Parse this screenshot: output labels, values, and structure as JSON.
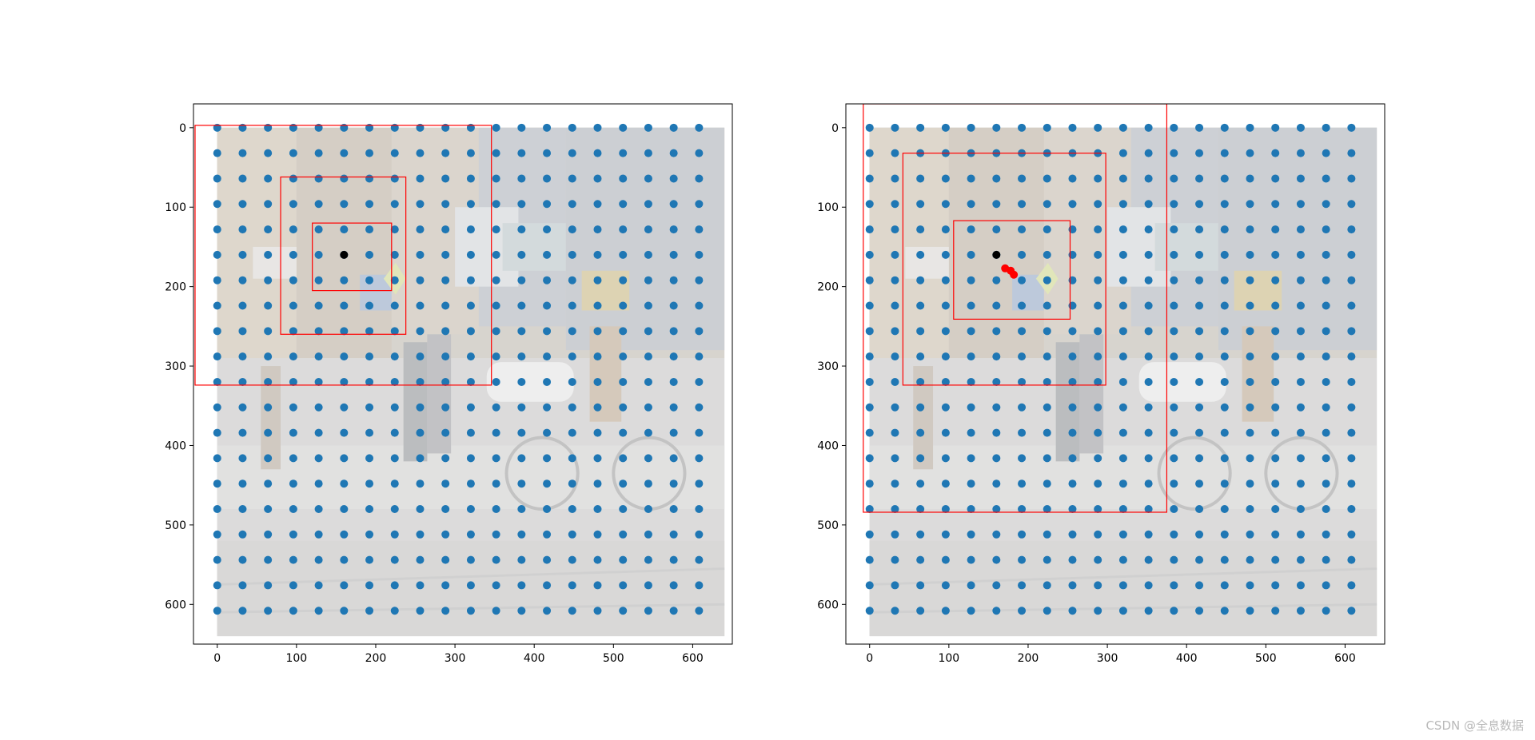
{
  "watermark": "CSDN @全息数据",
  "chart_data": [
    {
      "type": "scatter",
      "title": "",
      "xlabel": "",
      "ylabel": "",
      "xlim": [
        -30,
        650
      ],
      "ylim": [
        650,
        -30
      ],
      "y_inverted": true,
      "grid": false,
      "xticks": [
        0,
        100,
        200,
        300,
        400,
        500,
        600
      ],
      "yticks": [
        0,
        100,
        200,
        300,
        400,
        500,
        600
      ],
      "background_image": {
        "extent": [
          0,
          640,
          640,
          0
        ],
        "faded": true
      },
      "grid_points": {
        "start": 0,
        "step": 32,
        "count_x": 20,
        "count_y": 20,
        "color": "#1f77b4"
      },
      "center_point": {
        "x": 160,
        "y": 160,
        "color": "#000000"
      },
      "extra_points": [],
      "boxes": [
        {
          "x1": 120,
          "y1": 120,
          "x2": 220,
          "y2": 205,
          "color": "#ff0000"
        },
        {
          "x1": 80,
          "y1": 62,
          "x2": 238,
          "y2": 260,
          "color": "#ff0000"
        },
        {
          "x1": -28,
          "y1": -3,
          "x2": 346,
          "y2": 324,
          "color": "#ff0000"
        }
      ]
    },
    {
      "type": "scatter",
      "title": "",
      "xlabel": "",
      "ylabel": "",
      "xlim": [
        -30,
        650
      ],
      "ylim": [
        650,
        -30
      ],
      "y_inverted": true,
      "grid": false,
      "xticks": [
        0,
        100,
        200,
        300,
        400,
        500,
        600
      ],
      "yticks": [
        0,
        100,
        200,
        300,
        400,
        500,
        600
      ],
      "background_image": {
        "extent": [
          0,
          640,
          640,
          0
        ],
        "faded": true
      },
      "grid_points": {
        "start": 0,
        "step": 32,
        "count_x": 20,
        "count_y": 20,
        "color": "#1f77b4"
      },
      "center_point": {
        "x": 160,
        "y": 160,
        "color": "#000000"
      },
      "extra_points": [
        {
          "x": 171,
          "y": 177,
          "color": "#ff0000"
        },
        {
          "x": 178,
          "y": 180,
          "color": "#ff0000"
        },
        {
          "x": 182,
          "y": 185,
          "color": "#ff0000"
        }
      ],
      "boxes": [
        {
          "x1": 106,
          "y1": 117,
          "x2": 253,
          "y2": 241,
          "color": "#ff0000"
        },
        {
          "x1": 42,
          "y1": 32,
          "x2": 298,
          "y2": 324,
          "color": "#ff0000"
        },
        {
          "x1": -8,
          "y1": -30,
          "x2": 375,
          "y2": 484,
          "color": "#ff0000"
        }
      ]
    }
  ]
}
